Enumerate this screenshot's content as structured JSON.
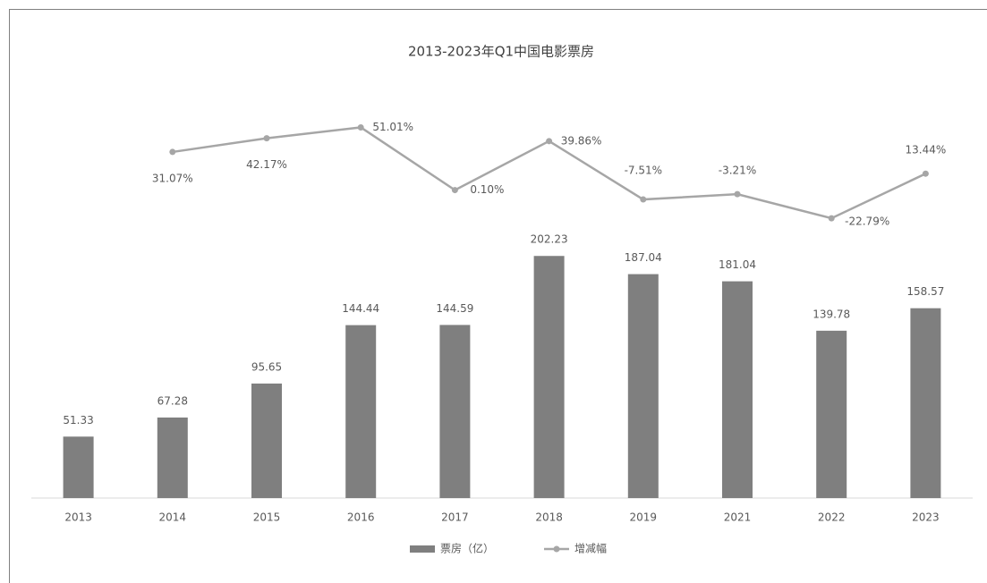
{
  "chart_data": {
    "type": "bar-line",
    "title": "2013-2023年Q1中国电影票房",
    "categories": [
      "2013",
      "2014",
      "2015",
      "2016",
      "2017",
      "2018",
      "2019",
      "2021",
      "2022",
      "2023"
    ],
    "series": [
      {
        "name": "票房（亿）",
        "type": "bar",
        "color": "#7f7f7f",
        "values": [
          51.33,
          67.28,
          95.65,
          144.44,
          144.59,
          202.23,
          187.04,
          181.04,
          139.78,
          158.57
        ]
      },
      {
        "name": "增减幅",
        "type": "line",
        "axis": "y2",
        "color": "#a6a6a6",
        "values": [
          null,
          31.07,
          42.17,
          51.01,
          0.1,
          39.86,
          -7.51,
          -3.21,
          -22.79,
          13.44
        ],
        "value_labels": [
          null,
          "31.07%",
          "42.17%",
          "51.01%",
          "0.10%",
          "39.86%",
          "-7.51%",
          "-3.21%",
          "-22.79%",
          "13.44%"
        ]
      }
    ],
    "ylim": [
      0,
      360
    ],
    "y2lim": [
      -250,
      100
    ],
    "grid": false,
    "legend": "bottom"
  }
}
